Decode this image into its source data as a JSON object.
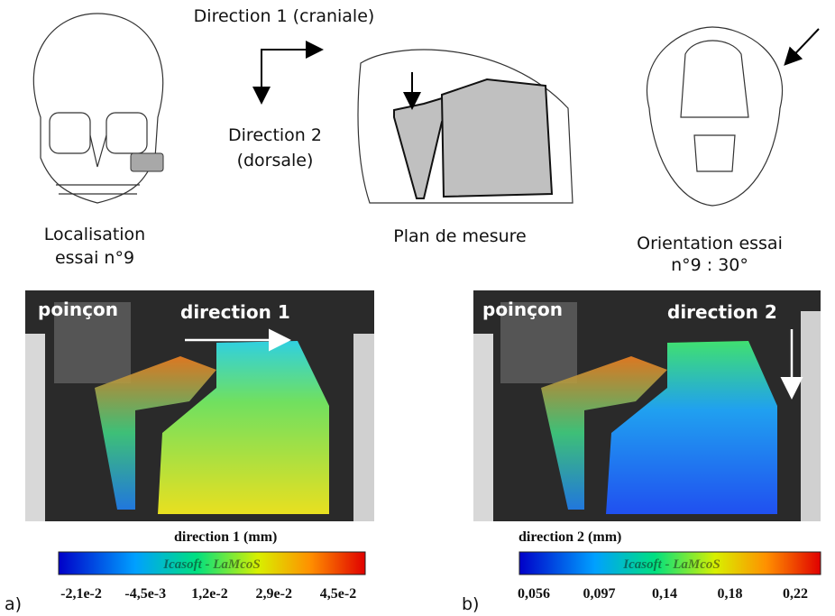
{
  "header": {
    "direction_1": "Direction 1 (craniale)",
    "direction_2": [
      "Direction 2",
      "(dorsale)"
    ]
  },
  "illustrations": [
    {
      "caption": [
        "Localisation",
        "essai n°9"
      ]
    },
    {
      "caption": [
        "Plan de mesure"
      ]
    },
    {
      "caption": [
        "Orientation essai",
        "n°9 : 30°"
      ]
    }
  ],
  "panels": [
    {
      "label": "a)",
      "punch": "poinçon",
      "direction": "direction 1",
      "colorbar": {
        "title": "direction 1 (mm)",
        "watermark": "Icasoft - LaMcoS",
        "ticks": [
          "-2,1e-2",
          "-4,5e-3",
          "1,2e-2",
          "2,9e-2",
          "4,5e-2"
        ]
      }
    },
    {
      "label": "b)",
      "punch": "poinçon",
      "direction": "direction 2",
      "colorbar": {
        "title": "direction 2 (mm)",
        "watermark": "Icasoft - LaMcoS",
        "ticks": [
          "0,056",
          "0,097",
          "0,14",
          "0,18",
          "0,22"
        ]
      }
    }
  ]
}
